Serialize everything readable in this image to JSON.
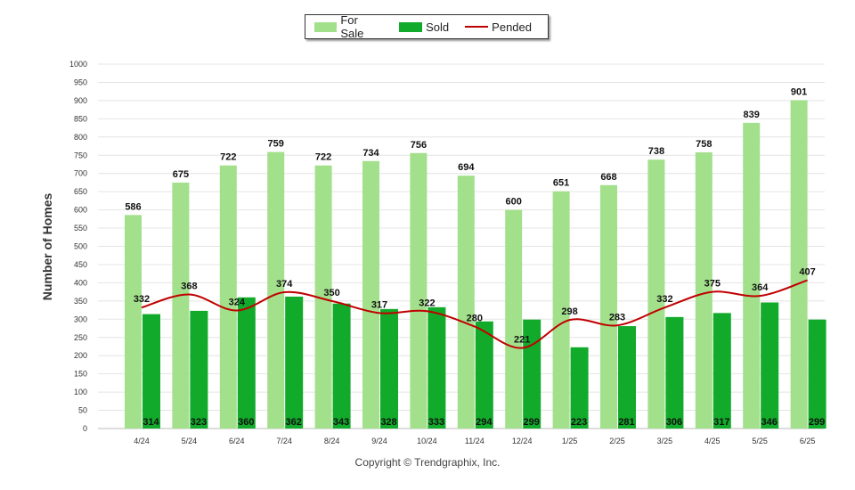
{
  "chart_data": {
    "type": "bar",
    "categories": [
      "4/24",
      "5/24",
      "6/24",
      "7/24",
      "8/24",
      "9/24",
      "10/24",
      "11/24",
      "12/24",
      "1/25",
      "2/25",
      "3/25",
      "4/25",
      "5/25",
      "6/25"
    ],
    "series": [
      {
        "name": "For Sale",
        "type": "bar",
        "color": "#a3e08b",
        "values": [
          586,
          675,
          722,
          759,
          722,
          734,
          756,
          694,
          600,
          651,
          668,
          738,
          758,
          839,
          901
        ]
      },
      {
        "name": "Sold",
        "type": "bar",
        "color": "#12aa2a",
        "values": [
          314,
          323,
          360,
          362,
          343,
          328,
          333,
          294,
          299,
          223,
          281,
          306,
          317,
          346,
          299
        ]
      },
      {
        "name": "Pended",
        "type": "line",
        "color": "#c00000",
        "values": [
          332,
          368,
          324,
          374,
          350,
          317,
          322,
          280,
          221,
          298,
          283,
          332,
          375,
          364,
          407
        ]
      }
    ],
    "ylabel": "Number of Homes",
    "xlabel": "",
    "ylim": [
      0,
      1000
    ],
    "ytick_step": 50,
    "grid": true,
    "legend_position": "top-center"
  },
  "footer": {
    "copyright": "Copyright © Trendgraphix, Inc."
  }
}
